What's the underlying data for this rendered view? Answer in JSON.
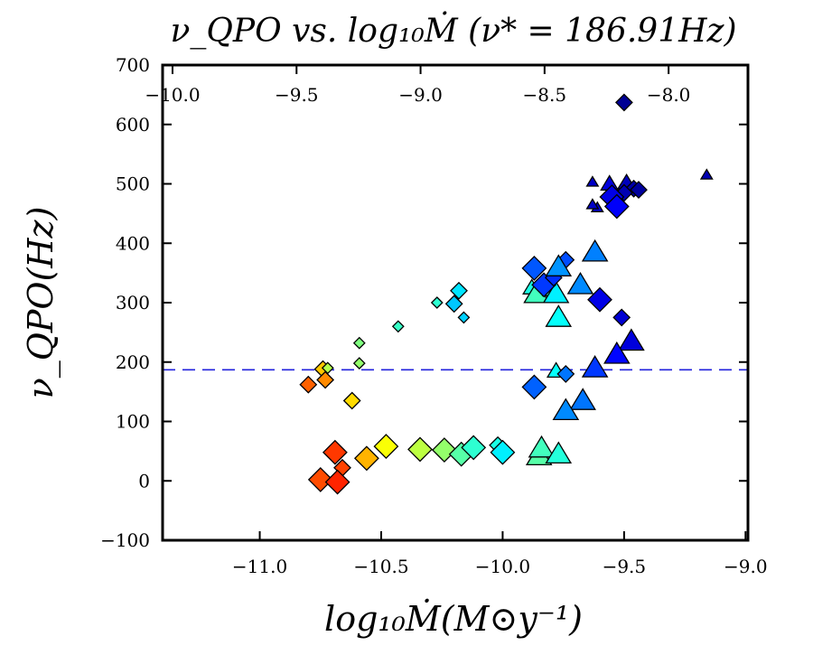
{
  "chart_data": {
    "type": "scatter",
    "title": "ν_QPO vs. log₁₀Ṁ (ν* = 186.91Hz)",
    "xlabel": "log₁₀Ṁ(M⊙y⁻¹)",
    "ylabel": "ν_QPO(Hz)",
    "xlim": [
      -11.4,
      -8.99
    ],
    "ylim": [
      -100,
      700
    ],
    "top_xlim": [
      -10.04,
      -7.68
    ],
    "x_ticks": [
      -11.0,
      -10.5,
      -10.0,
      -9.5,
      -9.0
    ],
    "x_tick_labels": [
      "−11.0",
      "−10.5",
      "−10.0",
      "−9.5",
      "−9.0"
    ],
    "top_x_ticks": [
      -10.0,
      -9.5,
      -9.0,
      -8.5,
      -8.0
    ],
    "top_x_tick_labels": [
      "−10.0",
      "−9.5",
      "−9.0",
      "−8.5",
      "−8.0"
    ],
    "y_ticks": [
      -100,
      0,
      100,
      200,
      300,
      400,
      500,
      600,
      700
    ],
    "y_tick_labels": [
      "−100",
      "0",
      "100",
      "200",
      "300",
      "400",
      "500",
      "600",
      "700"
    ],
    "grid": false,
    "legend": "none",
    "reference_line": {
      "y": 186.91,
      "style": "dashed",
      "color": "#2222dd"
    },
    "colormap": "jet",
    "points": [
      {
        "x": -10.8,
        "y": 162,
        "marker": "diamond",
        "size": "m",
        "c": 0.78
      },
      {
        "x": -10.74,
        "y": 188,
        "marker": "diamond",
        "size": "m",
        "c": 0.68
      },
      {
        "x": -10.72,
        "y": 190,
        "marker": "diamond",
        "size": "s",
        "c": 0.55
      },
      {
        "x": -10.73,
        "y": 170,
        "marker": "diamond",
        "size": "m",
        "c": 0.74
      },
      {
        "x": -10.62,
        "y": 135,
        "marker": "diamond",
        "size": "m",
        "c": 0.66
      },
      {
        "x": -10.59,
        "y": 232,
        "marker": "diamond",
        "size": "s",
        "c": 0.5
      },
      {
        "x": -10.59,
        "y": 198,
        "marker": "diamond",
        "size": "s",
        "c": 0.52
      },
      {
        "x": -10.43,
        "y": 260,
        "marker": "diamond",
        "size": "s",
        "c": 0.43
      },
      {
        "x": -10.27,
        "y": 300,
        "marker": "diamond",
        "size": "s",
        "c": 0.42
      },
      {
        "x": -10.18,
        "y": 320,
        "marker": "diamond",
        "size": "m",
        "c": 0.35
      },
      {
        "x": -10.16,
        "y": 275,
        "marker": "diamond",
        "size": "s",
        "c": 0.33
      },
      {
        "x": -10.2,
        "y": 298,
        "marker": "diamond",
        "size": "m",
        "c": 0.32
      },
      {
        "x": -10.75,
        "y": 2,
        "marker": "diamond",
        "size": "l",
        "c": 0.8
      },
      {
        "x": -10.69,
        "y": 48,
        "marker": "diamond",
        "size": "l",
        "c": 0.82
      },
      {
        "x": -10.66,
        "y": 22,
        "marker": "diamond",
        "size": "m",
        "c": 0.81
      },
      {
        "x": -10.68,
        "y": -2,
        "marker": "diamond",
        "size": "l",
        "c": 0.84
      },
      {
        "x": -10.56,
        "y": 38,
        "marker": "diamond",
        "size": "l",
        "c": 0.7
      },
      {
        "x": -10.48,
        "y": 58,
        "marker": "diamond",
        "size": "l",
        "c": 0.62
      },
      {
        "x": -10.34,
        "y": 53,
        "marker": "diamond",
        "size": "l",
        "c": 0.56
      },
      {
        "x": -10.24,
        "y": 52,
        "marker": "diamond",
        "size": "l",
        "c": 0.52
      },
      {
        "x": -10.17,
        "y": 45,
        "marker": "diamond",
        "size": "l",
        "c": 0.46
      },
      {
        "x": -10.12,
        "y": 56,
        "marker": "diamond",
        "size": "l",
        "c": 0.42
      },
      {
        "x": -10.02,
        "y": 60,
        "marker": "diamond",
        "size": "m",
        "c": 0.4
      },
      {
        "x": -10.0,
        "y": 48,
        "marker": "diamond",
        "size": "l",
        "c": 0.36
      },
      {
        "x": -9.88,
        "y": 325,
        "marker": "triangle",
        "size": "m",
        "c": 0.4
      },
      {
        "x": -9.86,
        "y": 315,
        "marker": "triangle",
        "size": "l",
        "c": 0.44
      },
      {
        "x": -9.8,
        "y": 322,
        "marker": "triangle",
        "size": "m",
        "c": 0.43
      },
      {
        "x": -9.77,
        "y": 275,
        "marker": "triangle",
        "size": "l",
        "c": 0.38
      },
      {
        "x": -9.78,
        "y": 315,
        "marker": "triangle",
        "size": "l",
        "c": 0.36
      },
      {
        "x": -9.85,
        "y": 42,
        "marker": "triangle",
        "size": "l",
        "c": 0.46
      },
      {
        "x": -9.84,
        "y": 55,
        "marker": "triangle",
        "size": "l",
        "c": 0.44
      },
      {
        "x": -9.77,
        "y": 45,
        "marker": "triangle",
        "size": "l",
        "c": 0.41
      },
      {
        "x": -9.78,
        "y": 185,
        "marker": "triangle",
        "size": "m",
        "c": 0.38
      },
      {
        "x": -9.74,
        "y": 180,
        "marker": "diamond",
        "size": "m",
        "c": 0.24
      },
      {
        "x": -9.87,
        "y": 358,
        "marker": "diamond",
        "size": "l",
        "c": 0.21
      },
      {
        "x": -9.83,
        "y": 330,
        "marker": "diamond",
        "size": "l",
        "c": 0.18
      },
      {
        "x": -9.79,
        "y": 342,
        "marker": "diamond",
        "size": "m",
        "c": 0.17
      },
      {
        "x": -9.74,
        "y": 372,
        "marker": "diamond",
        "size": "m",
        "c": 0.2
      },
      {
        "x": -9.77,
        "y": 360,
        "marker": "triangle",
        "size": "l",
        "c": 0.27
      },
      {
        "x": -9.68,
        "y": 330,
        "marker": "triangle",
        "size": "l",
        "c": 0.26
      },
      {
        "x": -9.62,
        "y": 385,
        "marker": "triangle",
        "size": "l",
        "c": 0.25
      },
      {
        "x": -9.6,
        "y": 305,
        "marker": "diamond",
        "size": "l",
        "c": 0.1
      },
      {
        "x": -9.51,
        "y": 275,
        "marker": "diamond",
        "size": "m",
        "c": 0.08
      },
      {
        "x": -9.47,
        "y": 235,
        "marker": "triangle",
        "size": "l",
        "c": 0.09
      },
      {
        "x": -9.53,
        "y": 213,
        "marker": "triangle",
        "size": "l",
        "c": 0.13
      },
      {
        "x": -9.62,
        "y": 190,
        "marker": "triangle",
        "size": "l",
        "c": 0.18
      },
      {
        "x": -9.87,
        "y": 158,
        "marker": "diamond",
        "size": "l",
        "c": 0.22
      },
      {
        "x": -9.67,
        "y": 135,
        "marker": "triangle",
        "size": "l",
        "c": 0.24
      },
      {
        "x": -9.74,
        "y": 118,
        "marker": "triangle",
        "size": "l",
        "c": 0.26
      },
      {
        "x": -9.5,
        "y": 637,
        "marker": "diamond",
        "size": "m",
        "c": 0.02
      },
      {
        "x": -9.16,
        "y": 515,
        "marker": "triangle",
        "size": "s",
        "c": 0.05
      },
      {
        "x": -9.63,
        "y": 503,
        "marker": "triangle",
        "size": "s",
        "c": 0.07
      },
      {
        "x": -9.56,
        "y": 500,
        "marker": "triangle",
        "size": "m",
        "c": 0.09
      },
      {
        "x": -9.49,
        "y": 502,
        "marker": "triangle",
        "size": "m",
        "c": 0.06
      },
      {
        "x": -9.46,
        "y": 492,
        "marker": "diamond",
        "size": "m",
        "c": 0.04
      },
      {
        "x": -9.5,
        "y": 485,
        "marker": "diamond",
        "size": "m",
        "c": 0.05
      },
      {
        "x": -9.44,
        "y": 490,
        "marker": "diamond",
        "size": "m",
        "c": 0.03
      },
      {
        "x": -9.55,
        "y": 478,
        "marker": "diamond",
        "size": "l",
        "c": 0.1
      },
      {
        "x": -9.53,
        "y": 462,
        "marker": "diamond",
        "size": "l",
        "c": 0.12
      },
      {
        "x": -9.61,
        "y": 460,
        "marker": "triangle",
        "size": "s",
        "c": 0.08
      },
      {
        "x": -9.63,
        "y": 465,
        "marker": "triangle",
        "size": "s",
        "c": 0.07
      }
    ]
  }
}
